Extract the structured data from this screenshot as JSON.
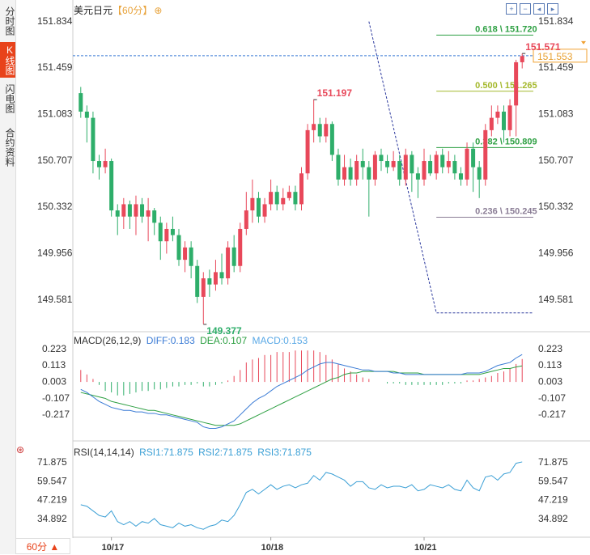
{
  "header": {
    "symbol": "美元日元",
    "period": "【60分】",
    "add_icon": "⊕"
  },
  "toolbar": {
    "icons": [
      "zoom-in-icon",
      "zoom-out-icon",
      "prev-icon",
      "next-icon"
    ]
  },
  "sidebar": {
    "tabs": [
      "分时图",
      "K线图",
      "闪电图",
      "合约资料"
    ],
    "active": 1
  },
  "period_button": "60分 ▲",
  "chart_data": {
    "type": "candlestick",
    "price_axis_ticks": [
      "151.834",
      "151.459",
      "151.083",
      "150.707",
      "150.332",
      "149.956",
      "149.581"
    ],
    "ylim": [
      149.37,
      151.86
    ],
    "x_labels": [
      {
        "i": 5,
        "label": "10/17"
      },
      {
        "i": 31,
        "label": "10/18"
      },
      {
        "i": 56,
        "label": "10/21"
      }
    ],
    "current_price": "151.553",
    "annotations": [
      {
        "label": "151.571",
        "i": 72,
        "price": 151.571
      },
      {
        "label": "151.197",
        "i": 38,
        "price": 151.197
      },
      {
        "label": "149.377",
        "i": 20,
        "price": 149.377
      }
    ],
    "fibonacci": [
      {
        "label": "0.618 \\ 151.720",
        "price": 151.72,
        "color": "#2ea043"
      },
      {
        "label": "0.500 \\ 151.265",
        "price": 151.265,
        "color": "#a4b82b"
      },
      {
        "label": "0.382 \\ 150.809",
        "price": 150.809,
        "color": "#2ea043"
      },
      {
        "label": "0.236 \\ 150.245",
        "price": 150.245,
        "color": "#8a7d95"
      }
    ],
    "candles": [
      [
        151.25,
        151.1,
        151.3,
        151.05
      ],
      [
        151.1,
        151.05,
        151.15,
        150.85
      ],
      [
        151.05,
        150.7,
        151.1,
        150.6
      ],
      [
        150.7,
        150.65,
        150.75,
        150.55
      ],
      [
        150.65,
        150.7,
        150.8,
        150.6
      ],
      [
        150.7,
        150.3,
        150.72,
        150.25
      ],
      [
        150.3,
        150.25,
        150.35,
        150.1
      ],
      [
        150.25,
        150.35,
        150.4,
        150.15
      ],
      [
        150.35,
        150.25,
        150.38,
        150.15
      ],
      [
        150.25,
        150.35,
        150.42,
        150.1
      ],
      [
        150.35,
        150.25,
        150.4,
        150.2
      ],
      [
        150.25,
        150.3,
        150.4,
        150.05
      ],
      [
        150.3,
        150.2,
        150.32,
        150.1
      ],
      [
        150.2,
        150.05,
        150.25,
        149.9
      ],
      [
        150.05,
        150.15,
        150.2,
        149.95
      ],
      [
        150.15,
        150.1,
        150.25,
        150.05
      ],
      [
        150.1,
        149.9,
        150.15,
        149.85
      ],
      [
        149.9,
        150.0,
        150.05,
        149.8
      ],
      [
        150.0,
        149.85,
        150.05,
        149.75
      ],
      [
        149.85,
        149.6,
        149.9,
        149.55
      ],
      [
        149.6,
        149.75,
        149.8,
        149.38
      ],
      [
        149.75,
        149.7,
        149.82,
        149.6
      ],
      [
        149.7,
        149.8,
        149.9,
        149.65
      ],
      [
        149.8,
        149.75,
        149.95,
        149.7
      ],
      [
        149.75,
        150.0,
        150.05,
        149.7
      ],
      [
        150.0,
        149.85,
        150.1,
        149.8
      ],
      [
        149.85,
        150.15,
        150.2,
        149.8
      ],
      [
        150.15,
        150.3,
        150.45,
        150.1
      ],
      [
        150.3,
        150.4,
        150.55,
        150.2
      ],
      [
        150.4,
        150.25,
        150.45,
        150.2
      ],
      [
        150.25,
        150.35,
        150.4,
        150.2
      ],
      [
        150.35,
        150.45,
        150.55,
        150.3
      ],
      [
        150.45,
        150.35,
        150.5,
        150.3
      ],
      [
        150.35,
        150.4,
        150.48,
        150.3
      ],
      [
        150.4,
        150.45,
        150.5,
        150.38
      ],
      [
        150.45,
        150.35,
        150.5,
        150.3
      ],
      [
        150.35,
        150.6,
        150.65,
        150.3
      ],
      [
        150.6,
        150.95,
        151.0,
        150.55
      ],
      [
        150.95,
        151.0,
        151.2,
        150.85
      ],
      [
        151.0,
        150.9,
        151.05,
        150.85
      ],
      [
        150.9,
        151.0,
        151.05,
        150.85
      ],
      [
        151.0,
        150.75,
        151.02,
        150.7
      ],
      [
        150.75,
        150.55,
        150.8,
        150.5
      ],
      [
        150.55,
        150.65,
        150.75,
        150.5
      ],
      [
        150.65,
        150.55,
        150.72,
        150.5
      ],
      [
        150.55,
        150.7,
        150.75,
        150.5
      ],
      [
        150.7,
        150.65,
        150.8,
        150.55
      ],
      [
        150.65,
        150.55,
        150.7,
        150.25
      ],
      [
        150.55,
        150.75,
        150.78,
        150.5
      ],
      [
        150.75,
        150.7,
        150.8,
        150.62
      ],
      [
        150.7,
        150.65,
        150.75,
        150.6
      ],
      [
        150.65,
        150.7,
        150.78,
        150.62
      ],
      [
        150.7,
        150.55,
        150.75,
        150.5
      ],
      [
        150.55,
        150.75,
        150.8,
        150.5
      ],
      [
        150.75,
        150.6,
        150.78,
        150.45
      ],
      [
        150.6,
        150.55,
        150.65,
        150.4
      ],
      [
        150.55,
        150.7,
        150.8,
        150.5
      ],
      [
        150.7,
        150.6,
        150.75,
        150.58
      ],
      [
        150.6,
        150.75,
        150.78,
        150.55
      ],
      [
        150.75,
        150.65,
        150.8,
        150.6
      ],
      [
        150.65,
        150.7,
        150.78,
        150.6
      ],
      [
        150.7,
        150.6,
        150.75,
        150.55
      ],
      [
        150.6,
        150.55,
        150.65,
        150.5
      ],
      [
        150.55,
        150.8,
        150.85,
        150.5
      ],
      [
        150.8,
        150.65,
        150.85,
        150.45
      ],
      [
        150.65,
        150.55,
        150.7,
        150.4
      ],
      [
        150.55,
        150.95,
        151.0,
        150.5
      ],
      [
        150.95,
        151.05,
        151.15,
        150.9
      ],
      [
        151.05,
        151.1,
        151.15,
        151.0
      ],
      [
        151.1,
        150.95,
        151.15,
        150.85
      ],
      [
        150.95,
        151.15,
        151.2,
        150.9
      ],
      [
        151.15,
        151.5,
        151.52,
        150.9
      ],
      [
        151.5,
        151.55,
        151.571,
        151.45
      ]
    ]
  },
  "macd": {
    "label": "MACD(26,12,9)",
    "diff_label": "DIFF:0.183",
    "dea_label": "DEA:0.107",
    "macd_label": "MACD:0.153",
    "ticks": [
      "0.223",
      "0.113",
      "0.003",
      "-0.107",
      "-0.217"
    ],
    "ylim": [
      -0.34,
      0.26
    ],
    "diff": [
      -0.05,
      -0.07,
      -0.1,
      -0.13,
      -0.15,
      -0.17,
      -0.18,
      -0.19,
      -0.19,
      -0.2,
      -0.2,
      -0.21,
      -0.21,
      -0.22,
      -0.22,
      -0.23,
      -0.24,
      -0.25,
      -0.26,
      -0.27,
      -0.3,
      -0.31,
      -0.31,
      -0.3,
      -0.28,
      -0.26,
      -0.22,
      -0.18,
      -0.14,
      -0.11,
      -0.09,
      -0.06,
      -0.03,
      -0.01,
      0.01,
      0.03,
      0.05,
      0.08,
      0.1,
      0.12,
      0.13,
      0.13,
      0.12,
      0.11,
      0.1,
      0.09,
      0.08,
      0.08,
      0.07,
      0.07,
      0.07,
      0.06,
      0.06,
      0.05,
      0.05,
      0.05,
      0.05,
      0.05,
      0.05,
      0.05,
      0.05,
      0.05,
      0.05,
      0.06,
      0.06,
      0.06,
      0.07,
      0.09,
      0.11,
      0.12,
      0.13,
      0.16,
      0.183
    ],
    "dea": [
      -0.07,
      -0.08,
      -0.09,
      -0.1,
      -0.11,
      -0.13,
      -0.14,
      -0.15,
      -0.16,
      -0.17,
      -0.18,
      -0.19,
      -0.19,
      -0.2,
      -0.21,
      -0.22,
      -0.23,
      -0.24,
      -0.25,
      -0.26,
      -0.27,
      -0.28,
      -0.29,
      -0.29,
      -0.29,
      -0.29,
      -0.28,
      -0.26,
      -0.24,
      -0.22,
      -0.2,
      -0.18,
      -0.16,
      -0.14,
      -0.12,
      -0.1,
      -0.08,
      -0.06,
      -0.04,
      -0.02,
      0.0,
      0.02,
      0.03,
      0.05,
      0.06,
      0.06,
      0.07,
      0.07,
      0.07,
      0.07,
      0.07,
      0.07,
      0.06,
      0.06,
      0.06,
      0.06,
      0.05,
      0.05,
      0.05,
      0.05,
      0.05,
      0.05,
      0.05,
      0.05,
      0.05,
      0.05,
      0.06,
      0.07,
      0.08,
      0.09,
      0.09,
      0.1,
      0.107
    ],
    "macd": [
      0.08,
      0.05,
      0.02,
      -0.02,
      -0.06,
      -0.07,
      -0.09,
      -0.09,
      -0.08,
      -0.07,
      -0.06,
      -0.06,
      -0.05,
      -0.05,
      -0.04,
      -0.03,
      -0.03,
      -0.02,
      -0.02,
      -0.01,
      -0.03,
      -0.03,
      -0.02,
      -0.01,
      0.01,
      0.04,
      0.08,
      0.13,
      0.15,
      0.16,
      0.18,
      0.18,
      0.2,
      0.2,
      0.2,
      0.21,
      0.21,
      0.21,
      0.21,
      0.2,
      0.18,
      0.15,
      0.12,
      0.09,
      0.07,
      0.05,
      0.03,
      0.02,
      0.0,
      0.0,
      -0.01,
      -0.01,
      -0.01,
      -0.02,
      -0.02,
      -0.02,
      -0.02,
      -0.02,
      -0.02,
      -0.02,
      -0.01,
      -0.01,
      -0.01,
      0.01,
      0.01,
      0.02,
      0.03,
      0.04,
      0.06,
      0.07,
      0.09,
      0.12,
      0.153
    ]
  },
  "rsi": {
    "label": "RSI(14,14,14)",
    "rsi1_label": "RSI1:71.875",
    "rsi2_label": "RSI2:71.875",
    "rsi3_label": "RSI3:71.875",
    "ticks": [
      "71.875",
      "59.547",
      "47.219",
      "34.892"
    ],
    "ylim": [
      26,
      75
    ],
    "values": [
      44,
      43,
      40,
      37,
      36,
      40,
      33,
      31,
      33,
      30,
      33,
      32,
      35,
      31,
      30,
      29,
      32,
      30,
      31,
      29,
      28,
      30,
      31,
      34,
      33,
      37,
      44,
      52,
      54,
      51,
      54,
      57,
      54,
      56,
      57,
      55,
      57,
      58,
      63,
      60,
      65,
      64,
      62,
      60,
      56,
      59,
      59,
      55,
      54,
      57,
      55,
      56,
      56,
      55,
      57,
      53,
      54,
      57,
      56,
      55,
      57,
      54,
      53,
      60,
      55,
      53,
      62,
      63,
      60,
      64,
      65,
      71,
      71.875
    ]
  }
}
